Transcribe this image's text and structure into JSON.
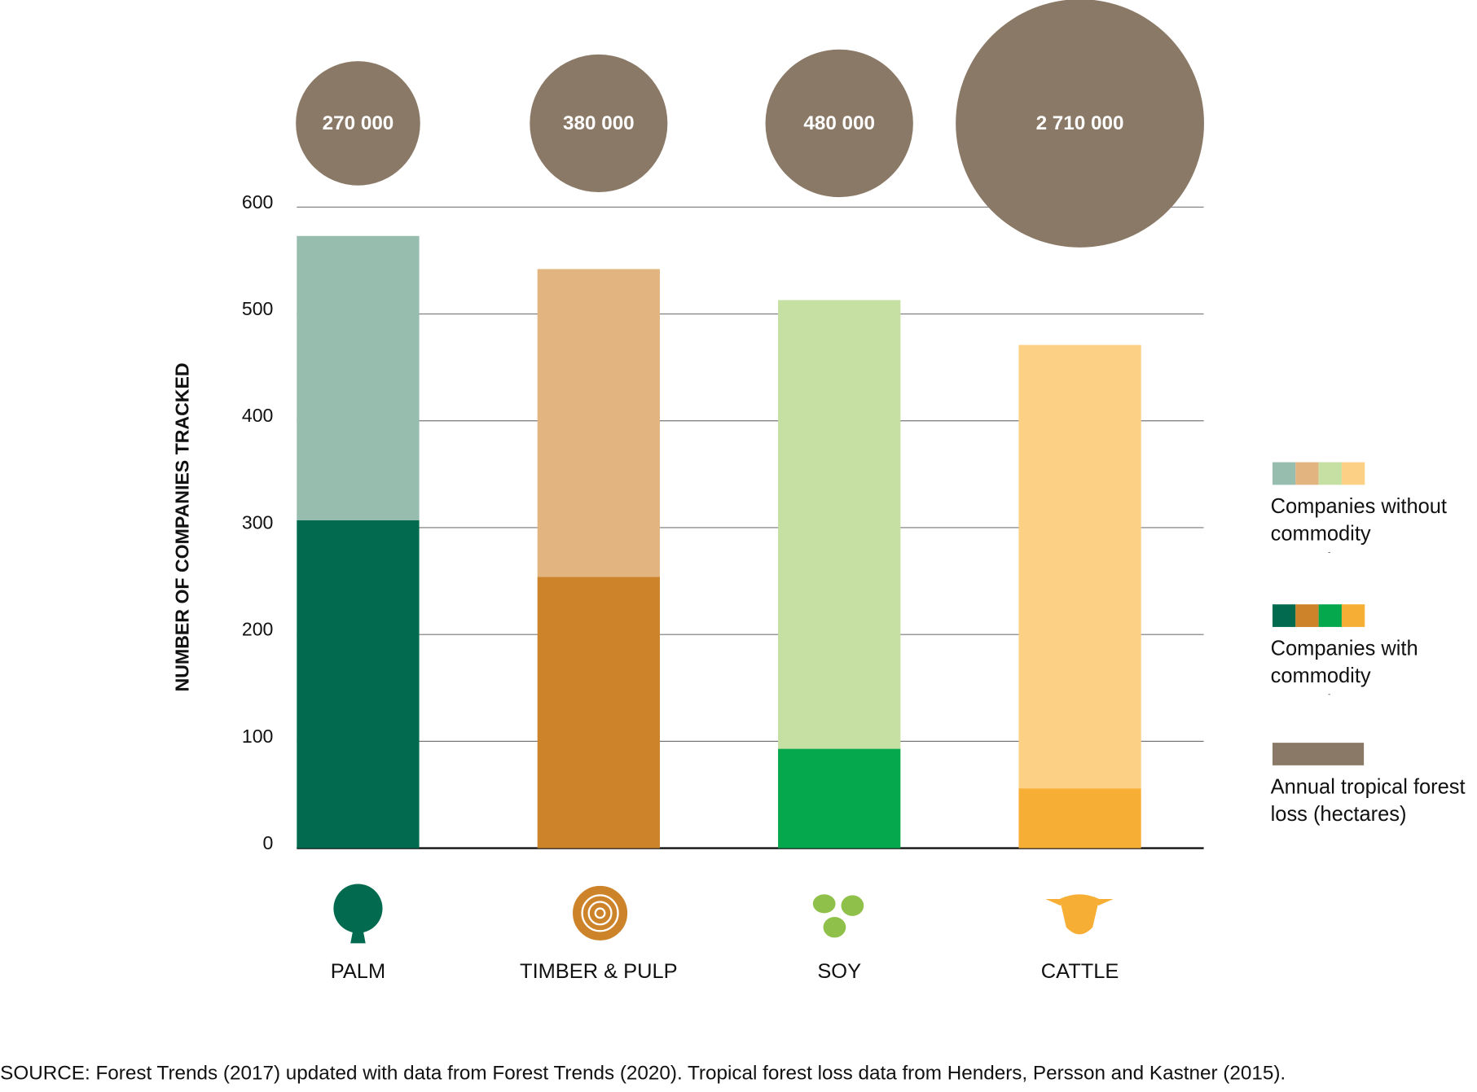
{
  "chart_data": {
    "type": "bar",
    "stacked": true,
    "y_label": "NUMBER OF COMPANIES TRACKED",
    "categories": [
      "PALM",
      "TIMBER & PULP",
      "SOY",
      "CATTLE"
    ],
    "series": [
      {
        "name": "Companies with commodity commitment",
        "colors": [
          "#026b4f",
          "#cd8329",
          "#05a84c",
          "#f7ae35"
        ],
        "values": [
          307,
          254,
          93,
          56
        ]
      },
      {
        "name": "Companies without commodity commitment",
        "colors": [
          "#96bdae",
          "#e2b580",
          "#c6dfa3",
          "#fcd186"
        ],
        "values": [
          266,
          288,
          420,
          415
        ]
      }
    ],
    "bubbles": {
      "name": "Annual tropical forest loss (hectares)",
      "color": "#8a7966",
      "values": [
        270000,
        380000,
        480000,
        2710000
      ],
      "value_labels": [
        "270 000",
        "380 000",
        "480 000",
        "2 710 000"
      ]
    },
    "ylim": [
      0,
      600
    ],
    "yticks": [
      0,
      100,
      200,
      300,
      400,
      500,
      600
    ],
    "grid": true,
    "source": "SOURCE: Forest Trends (2017) updated with data from Forest Trends (2020). Tropical forest loss data from Henders, Persson and Kastner (2015)."
  }
}
